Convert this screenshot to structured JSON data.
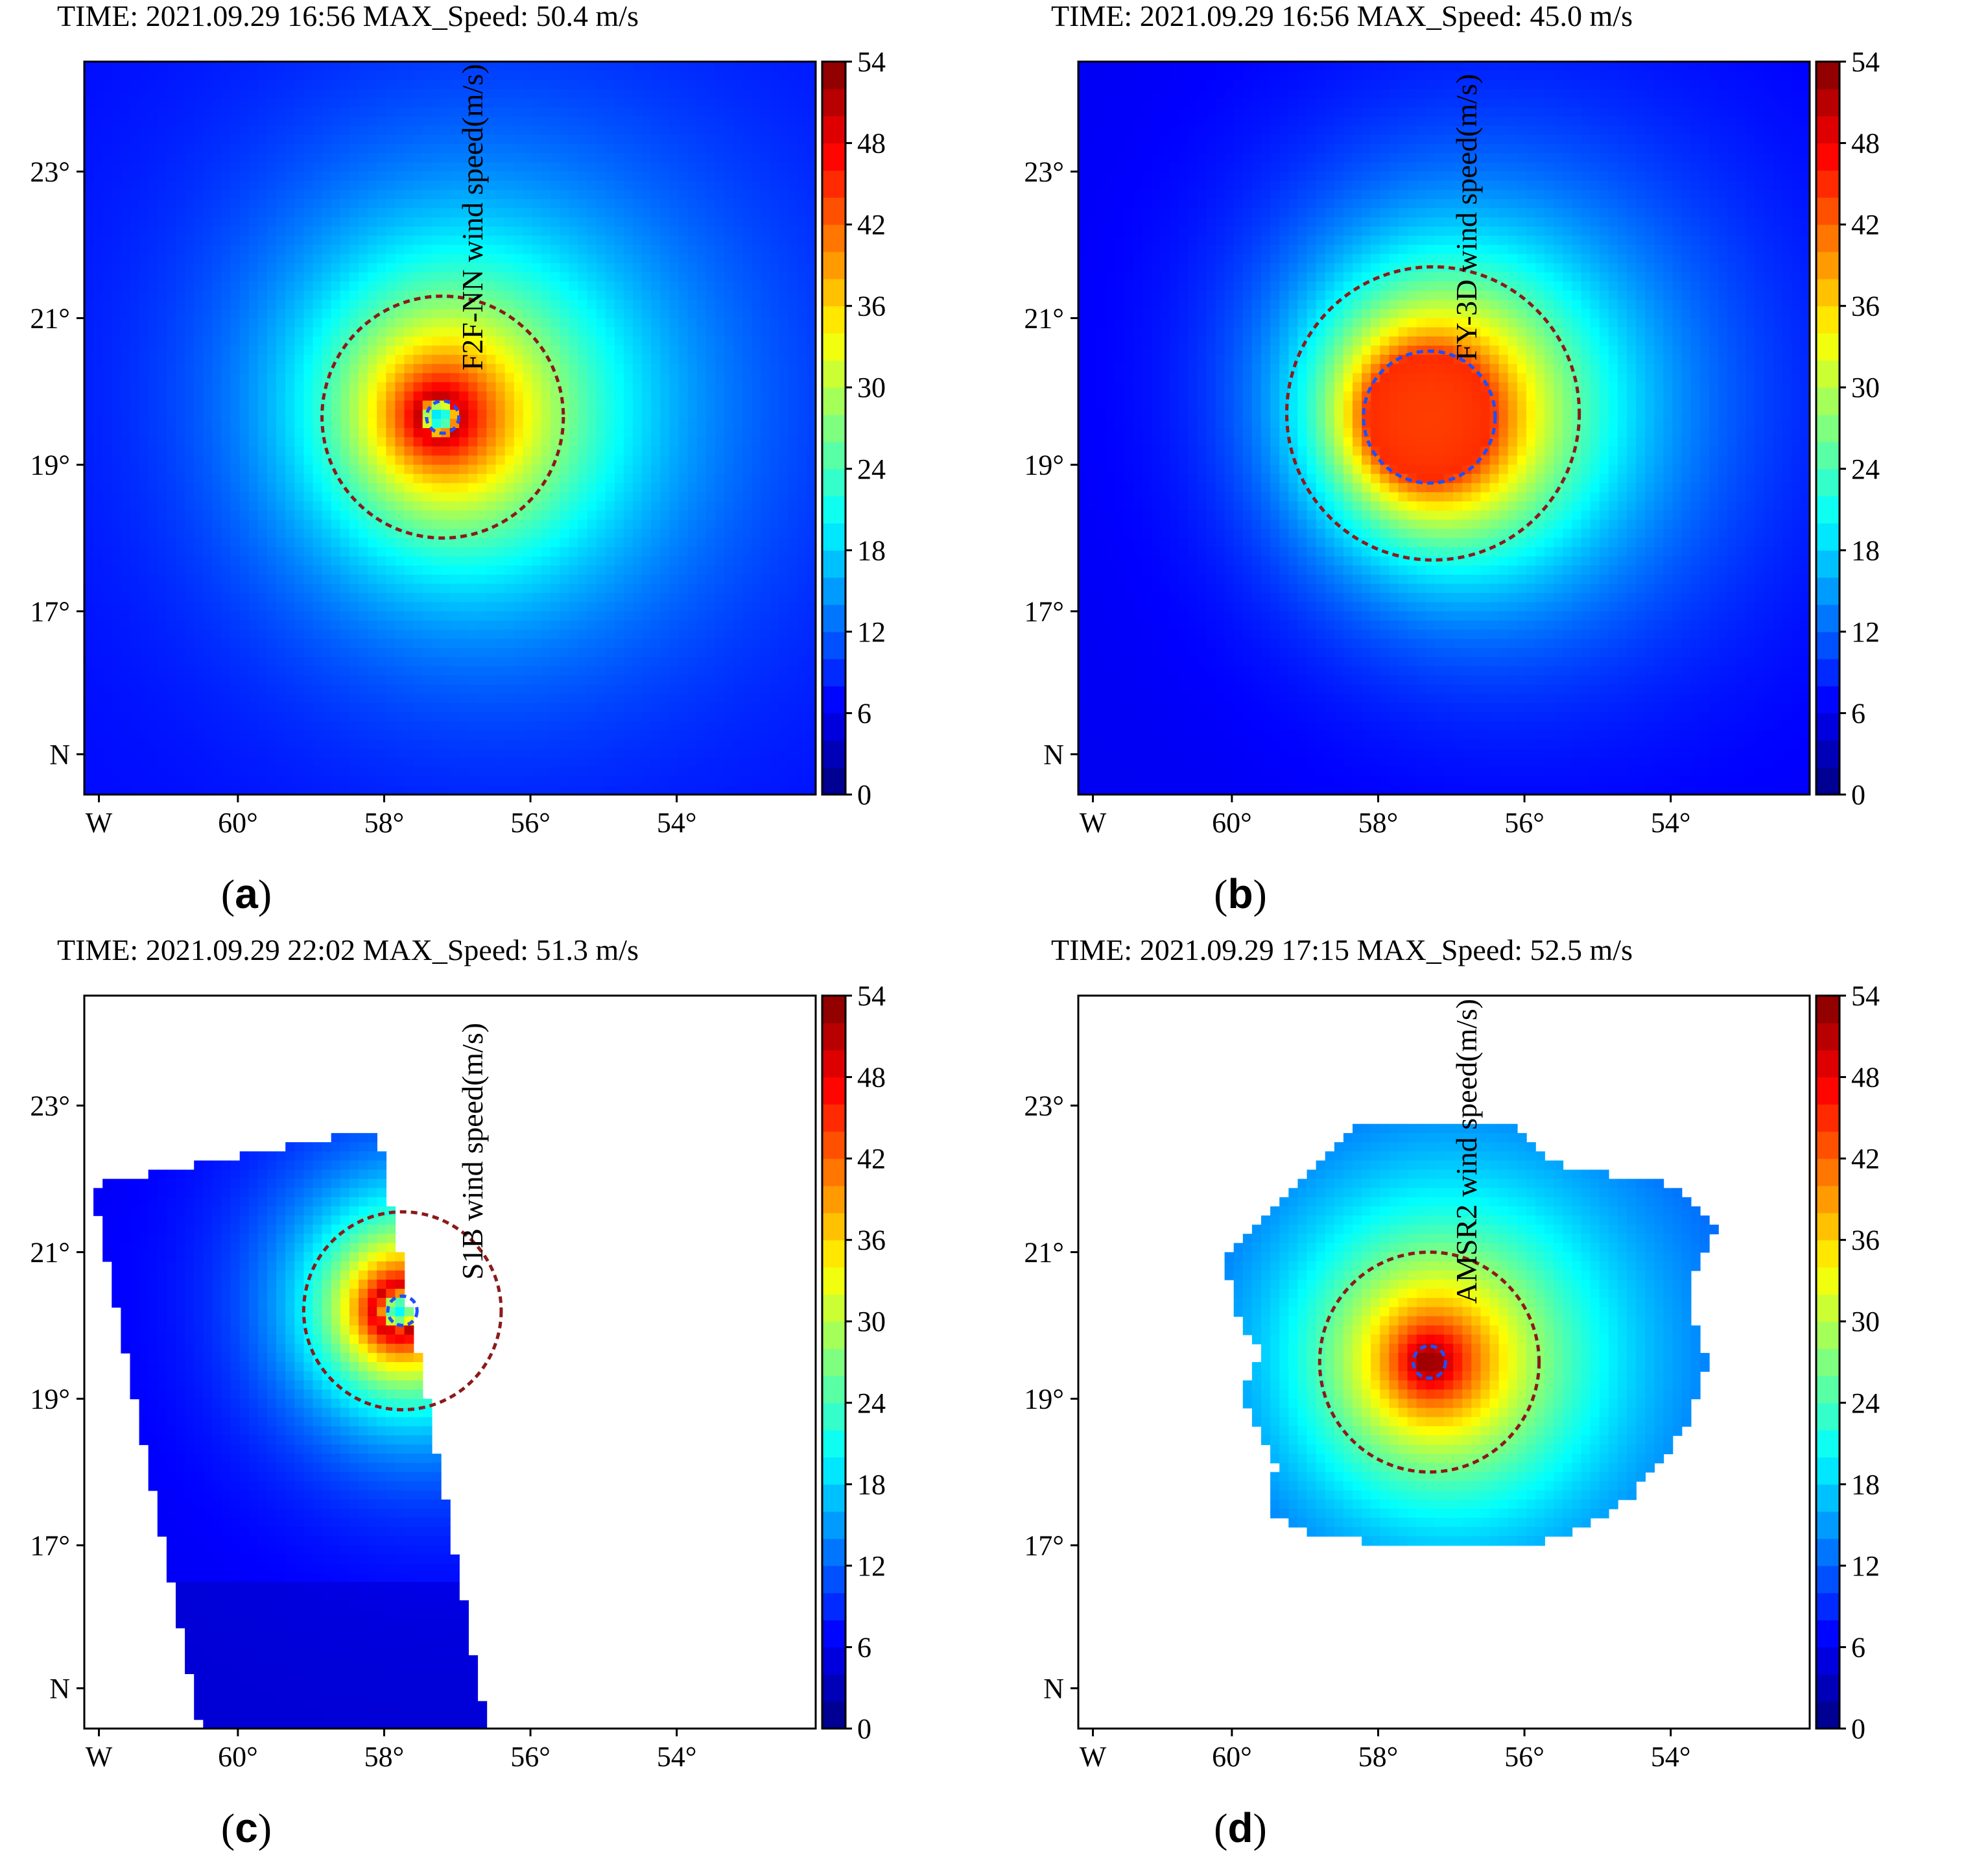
{
  "colorscale": {
    "name": "jet",
    "stops": [
      "#00007f",
      "#0000ff",
      "#007fff",
      "#00ffff",
      "#7fff7f",
      "#ffff00",
      "#ff7f00",
      "#ff0000",
      "#7f0000"
    ]
  },
  "circle_colors": {
    "outer": "#8b1a1a",
    "inner": "#1f4fff"
  },
  "chart_data": [
    {
      "type": "heatmap",
      "id": "a",
      "caption_label": "(a)",
      "caption_open": "(",
      "caption_letter": "a",
      "caption_close": ")",
      "title": "TIME: 2021.09.29 16:56   MAX_Speed: 50.4 m/s",
      "colorbar_label": "F2F-NN wind speed(m/s)",
      "colorbar_range": [
        0,
        54
      ],
      "colorbar_ticks": [
        "0",
        "6",
        "12",
        "18",
        "24",
        "30",
        "36",
        "42",
        "48",
        "54"
      ],
      "x_ticks": [
        {
          "value": -61.9,
          "label": "W"
        },
        {
          "value": -60,
          "label": "60°"
        },
        {
          "value": -58,
          "label": "58°"
        },
        {
          "value": -56,
          "label": "56°"
        },
        {
          "value": -54,
          "label": "54°"
        }
      ],
      "y_ticks": [
        {
          "value": 23,
          "label": "23°"
        },
        {
          "value": 21,
          "label": "21°"
        },
        {
          "value": 19,
          "label": "19°"
        },
        {
          "value": 17,
          "label": "17°"
        },
        {
          "value": 15.05,
          "label": "N"
        }
      ],
      "lon_range": [
        -62.1,
        -52.1
      ],
      "lat_range": [
        14.5,
        24.5
      ],
      "footprint": "full",
      "eye": {
        "lon": -57.25,
        "lat": 19.65
      },
      "max_wind": 50.4,
      "eye_wind": 18,
      "background_wind": 7,
      "rmw_deg": 0.28,
      "decay_deg": 1.6,
      "wave_amp": 0.18,
      "outer_circle": {
        "lon": -57.2,
        "lat": 19.65,
        "radius_deg": 1.65
      },
      "inner_circle": {
        "lon": -57.2,
        "lat": 19.65,
        "radius_deg": 0.22
      }
    },
    {
      "type": "heatmap",
      "id": "b",
      "caption_label": "(b)",
      "caption_open": "(",
      "caption_letter": "b",
      "caption_close": ")",
      "title": "TIME: 2021.09.29 16:56   MAX_Speed: 45.0 m/s",
      "colorbar_label": "FY-3D wind speed(m/s)",
      "colorbar_range": [
        0,
        54
      ],
      "colorbar_ticks": [
        "0",
        "6",
        "12",
        "18",
        "24",
        "30",
        "36",
        "42",
        "48",
        "54"
      ],
      "x_ticks": [
        {
          "value": -61.9,
          "label": "W"
        },
        {
          "value": -60,
          "label": "60°"
        },
        {
          "value": -58,
          "label": "58°"
        },
        {
          "value": -56,
          "label": "56°"
        },
        {
          "value": -54,
          "label": "54°"
        }
      ],
      "y_ticks": [
        {
          "value": 23,
          "label": "23°"
        },
        {
          "value": 21,
          "label": "21°"
        },
        {
          "value": 19,
          "label": "19°"
        },
        {
          "value": 17,
          "label": "17°"
        },
        {
          "value": 15.05,
          "label": "N"
        }
      ],
      "lon_range": [
        -62.1,
        -52.1
      ],
      "lat_range": [
        14.5,
        24.5
      ],
      "footprint": "full",
      "eye": {
        "lon": -57.3,
        "lat": 19.65
      },
      "max_wind": 45.0,
      "eye_wind": 44,
      "background_wind": 6,
      "rmw_deg": 0.85,
      "decay_deg": 1.3,
      "wave_amp": 0.3,
      "outer_circle": {
        "lon": -57.25,
        "lat": 19.7,
        "radius_deg": 2.0
      },
      "inner_circle": {
        "lon": -57.3,
        "lat": 19.65,
        "radius_deg": 0.9
      }
    },
    {
      "type": "heatmap",
      "id": "c",
      "caption_label": "(c)",
      "caption_open": "(",
      "caption_letter": "c",
      "caption_close": ")",
      "title": "TIME: 2021.09.29 22:02   MAX_Speed: 51.3 m/s",
      "colorbar_label": "S1B wind speed(m/s)",
      "colorbar_range": [
        0,
        54
      ],
      "colorbar_ticks": [
        "0",
        "6",
        "12",
        "18",
        "24",
        "30",
        "36",
        "42",
        "48",
        "54"
      ],
      "x_ticks": [
        {
          "value": -61.9,
          "label": "W"
        },
        {
          "value": -60,
          "label": "60°"
        },
        {
          "value": -58,
          "label": "58°"
        },
        {
          "value": -56,
          "label": "56°"
        },
        {
          "value": -54,
          "label": "54°"
        }
      ],
      "y_ticks": [
        {
          "value": 23,
          "label": "23°"
        },
        {
          "value": 21,
          "label": "21°"
        },
        {
          "value": 19,
          "label": "19°"
        },
        {
          "value": 17,
          "label": "17°"
        },
        {
          "value": 15.05,
          "label": "N"
        }
      ],
      "lon_range": [
        -62.1,
        -52.1
      ],
      "lat_range": [
        14.5,
        24.5
      ],
      "footprint": "swath",
      "swath_corners": [
        {
          "lon": -62.0,
          "lat": 21.9
        },
        {
          "lon": -58.1,
          "lat": 22.7
        },
        {
          "lon": -56.6,
          "lat": 14.5
        },
        {
          "lon": -60.5,
          "lat": 14.5
        }
      ],
      "eye": {
        "lon": -57.8,
        "lat": 20.2
      },
      "max_wind": 51.3,
      "eye_wind": 20,
      "background_wind": 6,
      "rmw_deg": 0.3,
      "decay_deg": 1.0,
      "wave_amp": 0.15,
      "outer_circle": {
        "lon": -57.75,
        "lat": 20.2,
        "radius_deg": 1.35
      },
      "inner_circle": {
        "lon": -57.75,
        "lat": 20.2,
        "radius_deg": 0.2
      }
    },
    {
      "type": "heatmap",
      "id": "d",
      "caption_label": "(d)",
      "caption_open": "(",
      "caption_letter": "d",
      "caption_close": ")",
      "title": "TIME: 2021.09.29 17:15   MAX_Speed: 52.5 m/s",
      "colorbar_label": "AMSR2 wind speed(m/s)",
      "colorbar_range": [
        0,
        54
      ],
      "colorbar_ticks": [
        "0",
        "6",
        "12",
        "18",
        "24",
        "30",
        "36",
        "42",
        "48",
        "54"
      ],
      "x_ticks": [
        {
          "value": -61.9,
          "label": "W"
        },
        {
          "value": -60,
          "label": "60°"
        },
        {
          "value": -58,
          "label": "58°"
        },
        {
          "value": -56,
          "label": "56°"
        },
        {
          "value": -54,
          "label": "54°"
        }
      ],
      "y_ticks": [
        {
          "value": 23,
          "label": "23°"
        },
        {
          "value": 21,
          "label": "21°"
        },
        {
          "value": 19,
          "label": "19°"
        },
        {
          "value": 17,
          "label": "17°"
        },
        {
          "value": 15.05,
          "label": "N"
        }
      ],
      "lon_range": [
        -62.1,
        -52.1
      ],
      "lat_range": [
        14.5,
        24.5
      ],
      "footprint": "polygon",
      "footprint_polygon": [
        {
          "lon": -58.3,
          "lat": 22.8
        },
        {
          "lon": -56.3,
          "lat": 22.8
        },
        {
          "lon": -55.4,
          "lat": 22.1
        },
        {
          "lon": -54.1,
          "lat": 22.0
        },
        {
          "lon": -53.4,
          "lat": 21.3
        },
        {
          "lon": -53.8,
          "lat": 20.4
        },
        {
          "lon": -53.5,
          "lat": 19.5
        },
        {
          "lon": -53.8,
          "lat": 18.6
        },
        {
          "lon": -54.6,
          "lat": 17.6
        },
        {
          "lon": -55.3,
          "lat": 17.2
        },
        {
          "lon": -56.0,
          "lat": 17.0
        },
        {
          "lon": -57.4,
          "lat": 17.0
        },
        {
          "lon": -58.7,
          "lat": 17.1
        },
        {
          "lon": -59.5,
          "lat": 17.4
        },
        {
          "lon": -59.4,
          "lat": 18.1
        },
        {
          "lon": -59.9,
          "lat": 19.1
        },
        {
          "lon": -59.6,
          "lat": 19.6
        },
        {
          "lon": -60.0,
          "lat": 20.3
        },
        {
          "lon": -60.1,
          "lat": 21.0
        },
        {
          "lon": -59.2,
          "lat": 21.8
        },
        {
          "lon": -58.3,
          "lat": 22.8
        }
      ],
      "eye": {
        "lon": -57.3,
        "lat": 19.5
      },
      "max_wind": 52.5,
      "eye_wind": 52,
      "background_wind": 9,
      "rmw_deg": 0.12,
      "decay_deg": 1.5,
      "wave_amp": 0.12,
      "outer_circle": {
        "lon": -57.3,
        "lat": 19.5,
        "radius_deg": 1.5
      },
      "inner_circle": {
        "lon": -57.3,
        "lat": 19.5,
        "radius_deg": 0.22
      }
    }
  ]
}
